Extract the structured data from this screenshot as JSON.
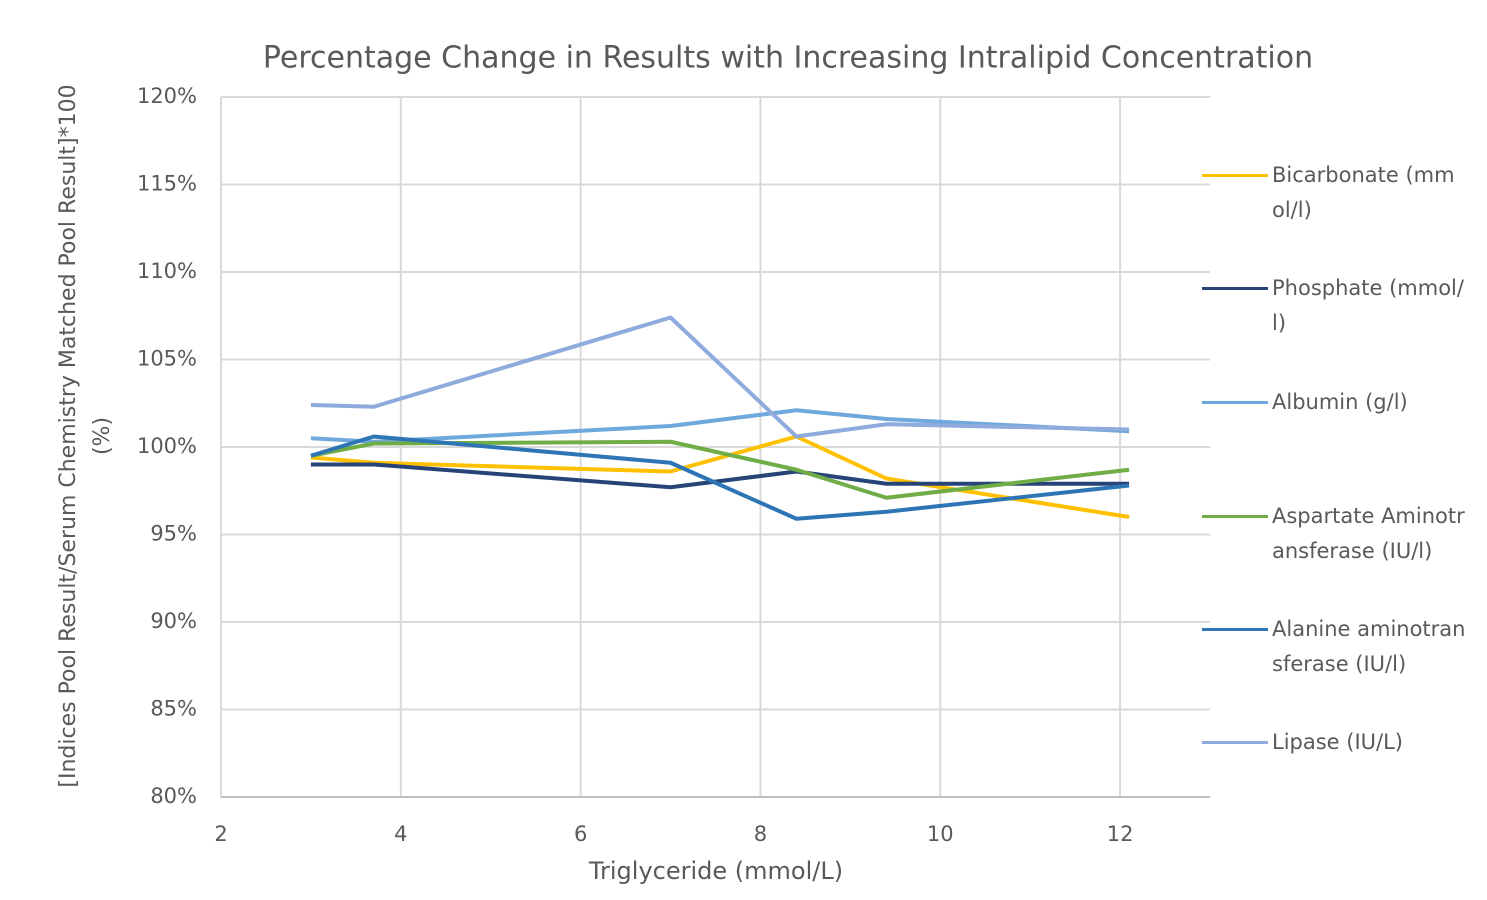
{
  "chart_data": {
    "type": "line",
    "title": "Percentage Change in Results with Increasing Intralipid Concentration",
    "x_label": "Triglyceride  (mmol/L)",
    "y_label": "[Indices Pool Result/Serum Chemistry Matched Pool Result]*100 (%)",
    "x": [
      3.0,
      3.7,
      7.0,
      8.4,
      9.4,
      12.1
    ],
    "series": [
      {
        "name": "Bicarbonate (mmol/l)",
        "color": "#FFC000",
        "values": [
          99.4,
          99.1,
          98.6,
          100.6,
          98.2,
          96.0
        ]
      },
      {
        "name": "Phosphate (mmol/l)",
        "color": "#264478",
        "values": [
          99.0,
          99.0,
          97.7,
          98.6,
          97.9,
          97.9
        ]
      },
      {
        "name": "Albumin (g/l)",
        "color": "#6FA8DC",
        "values": [
          100.5,
          100.3,
          101.2,
          102.1,
          101.6,
          100.9
        ]
      },
      {
        "name": "Aspartate Aminotransferase (IU/l)",
        "color": "#70AD47",
        "values": [
          99.5,
          100.2,
          100.3,
          98.7,
          97.1,
          98.7
        ]
      },
      {
        "name": "Alanine aminotransferase (IU/l)",
        "color": "#2E75B6",
        "values": [
          99.5,
          100.6,
          99.1,
          95.9,
          96.3,
          97.8
        ]
      },
      {
        "name": "Lipase (IU/L)",
        "color": "#8FAADC",
        "values": [
          102.4,
          102.3,
          107.4,
          100.6,
          101.3,
          101.0
        ]
      }
    ],
    "xlim": [
      2,
      13
    ],
    "xticks": [
      2,
      4,
      6,
      8,
      10,
      12
    ],
    "ylim": [
      80,
      120
    ],
    "yticks": [
      {
        "value": 80,
        "label": "80%"
      },
      {
        "value": 85,
        "label": "85%"
      },
      {
        "value": 90,
        "label": "90%"
      },
      {
        "value": 95,
        "label": "95%"
      },
      {
        "value": 100,
        "label": "100%"
      },
      {
        "value": 105,
        "label": "105%"
      },
      {
        "value": 110,
        "label": "110%"
      },
      {
        "value": 115,
        "label": "115%"
      },
      {
        "value": 120,
        "label": "120%"
      }
    ],
    "grid": true,
    "legend": "right"
  }
}
